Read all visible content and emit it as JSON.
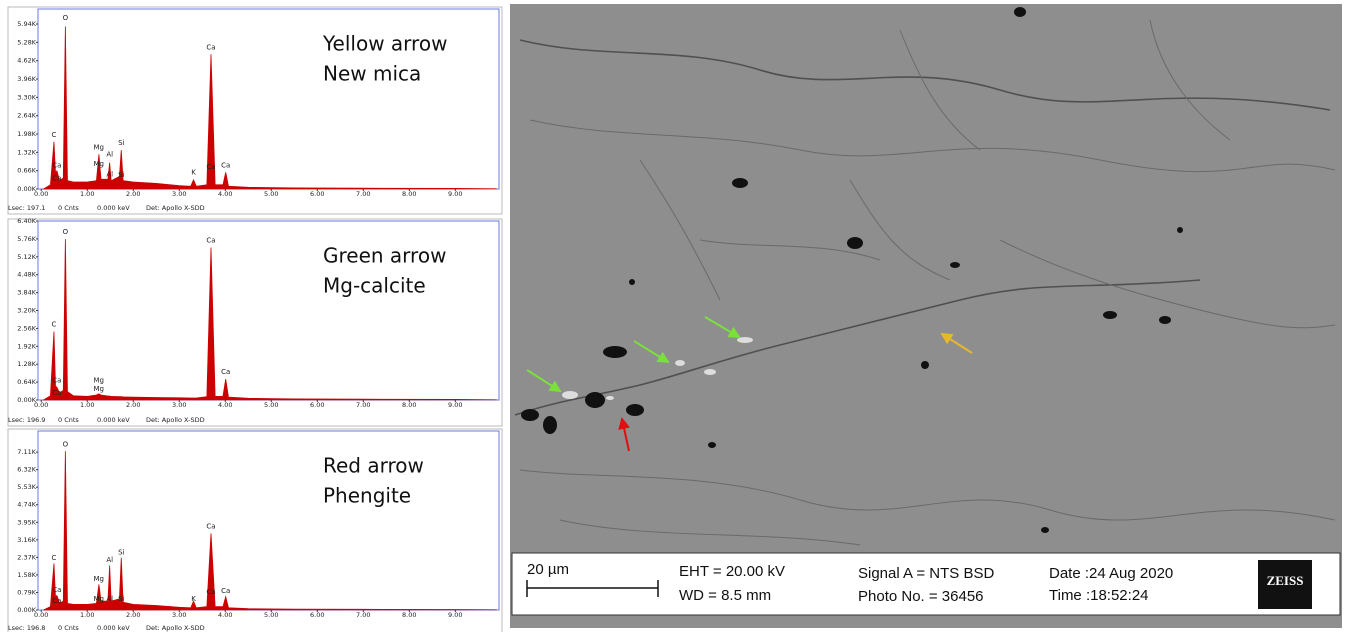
{
  "chart_data": [
    {
      "type": "area",
      "color": "#cc0000",
      "caption": [
        "Yellow arrow",
        "New mica"
      ],
      "footer": [
        "Lsec: 197.1",
        "0 Cnts",
        "0.000 keV",
        "Det: Apollo X-SDD"
      ],
      "peak_labels": [
        "O",
        "C",
        "Ca",
        "Ca",
        "Mg",
        "Mg",
        "Al",
        "Al",
        "Si",
        "Si",
        "K",
        "Ca",
        "Ca",
        "Ca"
      ],
      "x": [
        0.05,
        0.2,
        0.277,
        0.31,
        0.341,
        0.4,
        0.48,
        0.525,
        0.57,
        0.7,
        1.0,
        1.2,
        1.254,
        1.3,
        1.45,
        1.487,
        1.52,
        1.7,
        1.74,
        1.78,
        2.0,
        2.5,
        3.0,
        3.25,
        3.31,
        3.37,
        3.6,
        3.69,
        3.78,
        3.95,
        4.01,
        4.07,
        4.5,
        5.5,
        7,
        9,
        9.9
      ],
      "values": [
        0,
        150,
        1700,
        600,
        650,
        300,
        400,
        5850,
        300,
        250,
        250,
        300,
        1250,
        350,
        350,
        950,
        300,
        450,
        1400,
        300,
        250,
        200,
        120,
        100,
        330,
        100,
        150,
        4850,
        150,
        150,
        600,
        100,
        60,
        40,
        30,
        20,
        10
      ],
      "xlim": [
        -0.07,
        9.95
      ],
      "xticks": [
        {
          "value": 0,
          "label": "0.00"
        },
        {
          "value": 1,
          "label": "1.00"
        },
        {
          "value": 2,
          "label": "2.00"
        },
        {
          "value": 3,
          "label": "3.00"
        },
        {
          "value": 4,
          "label": "4.00"
        },
        {
          "value": 5,
          "label": "5.00"
        },
        {
          "value": 6,
          "label": "6.00"
        },
        {
          "value": 7,
          "label": "7.00"
        },
        {
          "value": 8,
          "label": "8.00"
        },
        {
          "value": 9,
          "label": "9.00"
        }
      ],
      "ylim": [
        0,
        6480
      ],
      "yticks": [
        {
          "value": 0,
          "label": "0.00K"
        },
        {
          "value": 660,
          "label": "0.66K"
        },
        {
          "value": 1320,
          "label": "1.32K"
        },
        {
          "value": 1980,
          "label": "1.98K"
        },
        {
          "value": 2640,
          "label": "2.64K"
        },
        {
          "value": 3300,
          "label": "3.30K"
        },
        {
          "value": 3960,
          "label": "3.96K"
        },
        {
          "value": 4620,
          "label": "4.62K"
        },
        {
          "value": 5280,
          "label": "5.28K"
        },
        {
          "value": 5940,
          "label": "5.94K"
        }
      ]
    },
    {
      "type": "area",
      "color": "#cc0000",
      "caption": [
        "Green arrow",
        "Mg-calcite"
      ],
      "footer": [
        "Lsec: 196.9",
        "0 Cnts",
        "0.000 keV",
        "Det: Apollo X-SDD"
      ],
      "peak_labels": [
        "O",
        "C",
        "Ca",
        "Ca",
        "Mg",
        "Mg",
        "Ca",
        "Ca"
      ],
      "x": [
        0.05,
        0.2,
        0.277,
        0.31,
        0.341,
        0.4,
        0.48,
        0.525,
        0.57,
        0.7,
        1.0,
        1.2,
        1.254,
        1.3,
        1.45,
        1.487,
        1.52,
        1.7,
        1.74,
        1.78,
        2.0,
        2.5,
        3.0,
        3.25,
        3.31,
        3.37,
        3.6,
        3.69,
        3.78,
        3.95,
        4.01,
        4.07,
        4.5,
        5.5,
        7,
        9,
        9.9
      ],
      "values": [
        0,
        150,
        2450,
        500,
        450,
        250,
        350,
        5750,
        300,
        150,
        130,
        180,
        220,
        180,
        140,
        140,
        130,
        120,
        120,
        110,
        100,
        90,
        80,
        70,
        70,
        70,
        120,
        5450,
        130,
        130,
        750,
        100,
        60,
        40,
        30,
        20,
        10
      ],
      "xlim": [
        -0.07,
        9.95
      ],
      "xticks": [
        {
          "value": 0,
          "label": "0.00"
        },
        {
          "value": 1,
          "label": "1.00"
        },
        {
          "value": 2,
          "label": "2.00"
        },
        {
          "value": 3,
          "label": "3.00"
        },
        {
          "value": 4,
          "label": "4.00"
        },
        {
          "value": 5,
          "label": "5.00"
        },
        {
          "value": 6,
          "label": "6.00"
        },
        {
          "value": 7,
          "label": "7.00"
        },
        {
          "value": 8,
          "label": "8.00"
        },
        {
          "value": 9,
          "label": "9.00"
        }
      ],
      "ylim": [
        0,
        6400
      ],
      "yticks": [
        {
          "value": 0,
          "label": "0.00K"
        },
        {
          "value": 640,
          "label": "0.64K"
        },
        {
          "value": 1280,
          "label": "1.28K"
        },
        {
          "value": 1920,
          "label": "1.92K"
        },
        {
          "value": 2560,
          "label": "2.56K"
        },
        {
          "value": 3200,
          "label": "3.20K"
        },
        {
          "value": 3840,
          "label": "3.84K"
        },
        {
          "value": 4480,
          "label": "4.48K"
        },
        {
          "value": 5120,
          "label": "5.12K"
        },
        {
          "value": 5760,
          "label": "5.76K"
        },
        {
          "value": 6400,
          "label": "6.40K"
        }
      ]
    },
    {
      "type": "area",
      "color": "#cc0000",
      "caption": [
        "Red arrow",
        "Phengite"
      ],
      "footer": [
        "Lsec: 196.8",
        "0 Cnts",
        "0.000 keV",
        "Det: Apollo X-SDD"
      ],
      "peak_labels": [
        "O",
        "C",
        "Ca",
        "Ca",
        "Mg",
        "Mg",
        "Al",
        "Al",
        "Si",
        "Si",
        "K",
        "Ca",
        "Ca",
        "Ca"
      ],
      "x": [
        0.05,
        0.2,
        0.277,
        0.31,
        0.341,
        0.4,
        0.48,
        0.525,
        0.57,
        0.7,
        1.0,
        1.2,
        1.254,
        1.3,
        1.45,
        1.487,
        1.52,
        1.7,
        1.74,
        1.78,
        2.0,
        2.5,
        3.0,
        3.25,
        3.31,
        3.37,
        3.6,
        3.69,
        3.78,
        3.95,
        4.01,
        4.07,
        4.5,
        5.5,
        7,
        9,
        9.9
      ],
      "values": [
        0,
        150,
        2100,
        600,
        650,
        300,
        400,
        7150,
        300,
        250,
        250,
        300,
        1150,
        400,
        400,
        2000,
        400,
        500,
        2350,
        350,
        250,
        200,
        120,
        100,
        400,
        100,
        150,
        3450,
        150,
        150,
        600,
        100,
        60,
        40,
        30,
        20,
        10
      ],
      "xlim": [
        -0.07,
        9.95
      ],
      "xticks": [
        {
          "value": 0,
          "label": "0.00"
        },
        {
          "value": 1,
          "label": "1.00"
        },
        {
          "value": 2,
          "label": "2.00"
        },
        {
          "value": 3,
          "label": "3.00"
        },
        {
          "value": 4,
          "label": "4.00"
        },
        {
          "value": 5,
          "label": "5.00"
        },
        {
          "value": 6,
          "label": "6.00"
        },
        {
          "value": 7,
          "label": "7.00"
        },
        {
          "value": 8,
          "label": "8.00"
        },
        {
          "value": 9,
          "label": "9.00"
        }
      ],
      "ylim": [
        0,
        8060
      ],
      "yticks": [
        {
          "value": 0,
          "label": "0.00K"
        },
        {
          "value": 790,
          "label": "0.79K"
        },
        {
          "value": 1580,
          "label": "1.58K"
        },
        {
          "value": 2370,
          "label": "2.37K"
        },
        {
          "value": 3160,
          "label": "3.16K"
        },
        {
          "value": 3950,
          "label": "3.95K"
        },
        {
          "value": 4740,
          "label": "4.74K"
        },
        {
          "value": 5530,
          "label": "5.53K"
        },
        {
          "value": 6320,
          "label": "6.32K"
        },
        {
          "value": 7110,
          "label": "7.11K"
        }
      ]
    }
  ],
  "sem": {
    "scale_bar": "20 µm",
    "eht": "EHT = 20.00 kV",
    "wd": "WD =  8.5 mm",
    "signal": "Signal A = NTS BSD",
    "photo": "Photo No. = 36456",
    "date": "Date :24 Aug 2020",
    "time": "Time :18:52:24",
    "logo": "ZEISS"
  }
}
